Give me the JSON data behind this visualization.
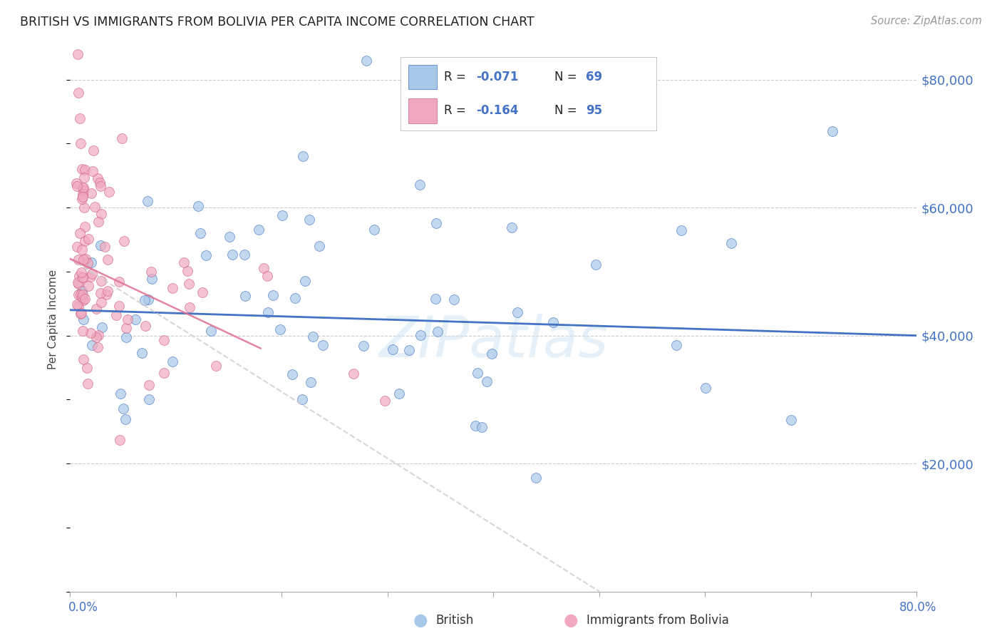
{
  "title": "BRITISH VS IMMIGRANTS FROM BOLIVIA PER CAPITA INCOME CORRELATION CHART",
  "source": "Source: ZipAtlas.com",
  "ylabel": "Per Capita Income",
  "color_british": "#a8c8e8",
  "color_bolivia": "#f0a8c0",
  "color_trendline_british": "#4472c4",
  "color_trendline_bolivia": "#c8c8c8",
  "color_title": "#222222",
  "color_source": "#999999",
  "color_yaxis": "#4472c4",
  "color_xaxis": "#4472c4",
  "color_legend_R": "#222222",
  "color_legend_val": "#4472c4",
  "watermark_color": "#d0e4f4",
  "background_color": "#ffffff",
  "grid_color": "#cccccc",
  "trendline_bolivia_color": "#cccccc",
  "ytick_positions": [
    20000,
    40000,
    60000,
    80000
  ],
  "ytick_labels": [
    "$20,000",
    "$40,000",
    "$60,000",
    "$80,000"
  ],
  "xlim": [
    0.0,
    0.8
  ],
  "ylim": [
    0,
    85000
  ],
  "british_trend_x": [
    0.0,
    0.8
  ],
  "british_trend_y": [
    44000,
    40000
  ],
  "bolivia_trend_x": [
    0.0,
    0.5
  ],
  "bolivia_trend_y": [
    52000,
    0
  ]
}
